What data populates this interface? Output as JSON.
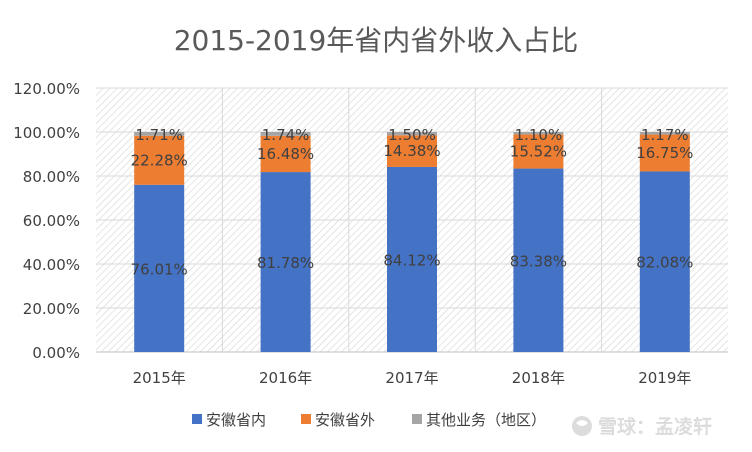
{
  "chart_data": {
    "type": "bar",
    "stacked": true,
    "title": "2015-2019年省内省外收入占比",
    "categories": [
      "2015年",
      "2016年",
      "2017年",
      "2018年",
      "2019年"
    ],
    "series": [
      {
        "name": "安徽省内",
        "color": "#4472C4",
        "values": [
          76.01,
          81.78,
          84.12,
          83.38,
          82.08
        ],
        "labels": [
          "76.01%",
          "81.78%",
          "84.12%",
          "83.38%",
          "82.08%"
        ]
      },
      {
        "name": "安徽省外",
        "color": "#ED7D31",
        "values": [
          22.28,
          16.48,
          14.38,
          15.52,
          16.75
        ],
        "labels": [
          "22.28%",
          "16.48%",
          "14.38%",
          "15.52%",
          "16.75%"
        ]
      },
      {
        "name": "其他业务（地区）",
        "color": "#A5A5A5",
        "values": [
          1.71,
          1.74,
          1.5,
          1.1,
          1.17
        ],
        "labels": [
          "1.71%",
          "1.74%",
          "1.50%",
          "1.10%",
          "1.17%"
        ]
      }
    ],
    "ylim": [
      0,
      120
    ],
    "yticks": [
      "0.00%",
      "20.00%",
      "40.00%",
      "60.00%",
      "80.00%",
      "100.00%",
      "120.00%"
    ],
    "grid": true,
    "legend": "bottom",
    "plot_background": "hatched-gray"
  },
  "watermark": "雪球：孟凌轩"
}
